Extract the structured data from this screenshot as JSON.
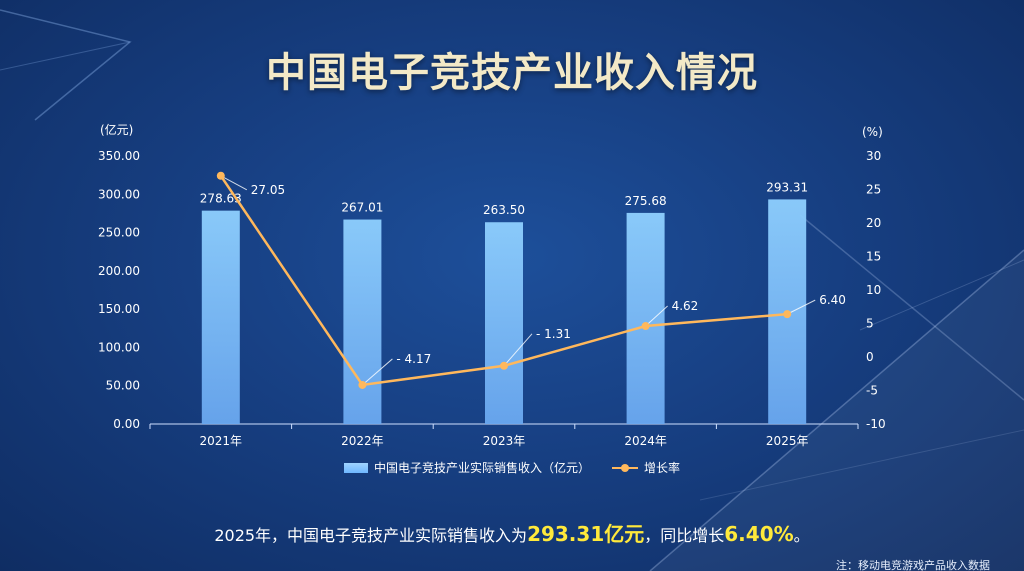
{
  "title": "中国电子竞技产业收入情况",
  "colors": {
    "bar": "#88c8ff",
    "line": "#ffb85c",
    "title": "#f3e9c7",
    "highlight": "#ffe93b"
  },
  "chart_data": {
    "type": "bar+line",
    "categories": [
      "2021年",
      "2022年",
      "2023年",
      "2024年",
      "2025年"
    ],
    "series": [
      {
        "name": "中国电子竞技产业实际销售收入（亿元）",
        "type": "bar",
        "axis": "left",
        "values": [
          278.63,
          267.01,
          263.5,
          275.68,
          293.31
        ],
        "labels": [
          "278.63",
          "267.01",
          "263.50",
          "275.68",
          "293.31"
        ]
      },
      {
        "name": "增长率",
        "type": "line",
        "axis": "right",
        "values": [
          27.05,
          -4.17,
          -1.31,
          4.62,
          6.4
        ],
        "labels": [
          "27.05",
          "- 4.17",
          "- 1.31",
          "4.62",
          "6.40"
        ]
      }
    ],
    "y_left": {
      "unit": "(亿元)",
      "ylim": [
        0,
        350
      ],
      "ticks": [
        "0.00",
        "50.00",
        "100.00",
        "150.00",
        "200.00",
        "250.00",
        "300.00",
        "350.00"
      ]
    },
    "y_right": {
      "unit": "(%)",
      "ylim": [
        -10,
        30
      ],
      "ticks": [
        "-10",
        "-5",
        "0",
        "5",
        "10",
        "15",
        "20",
        "25",
        "30"
      ]
    },
    "legend_position": "bottom",
    "grid": false
  },
  "legend": {
    "bar": "中国电子竞技产业实际销售收入（亿元）",
    "line": "增长率"
  },
  "summary": {
    "pre": "2025年，中国电子竞技产业实际销售收入为",
    "value": "293.31亿元",
    "mid": "，同比增长",
    "growth": "6.40%",
    "post": "。"
  },
  "note": "注：移动电竞游戏产品收入数据"
}
